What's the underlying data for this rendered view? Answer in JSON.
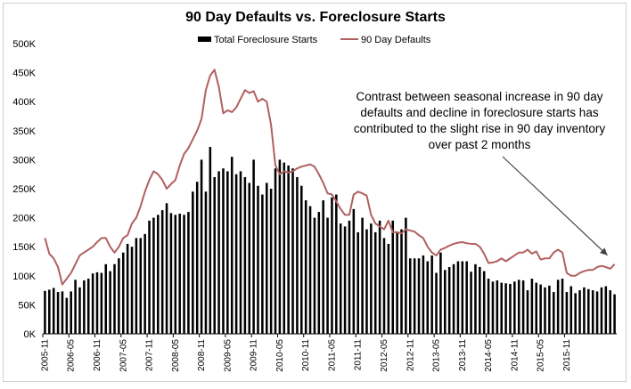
{
  "chart_data": {
    "type": "bar",
    "title": "90 Day Defaults vs. Foreclosure Starts",
    "xlabel": "",
    "ylabel": "",
    "ylim": [
      0,
      500000
    ],
    "yticks": [
      0,
      50000,
      100000,
      150000,
      200000,
      250000,
      300000,
      350000,
      400000,
      450000,
      500000
    ],
    "ytick_labels": [
      "0K",
      "50K",
      "100K",
      "150K",
      "200K",
      "250K",
      "300K",
      "350K",
      "400K",
      "450K",
      "500K"
    ],
    "x_start": "2005-11",
    "xtick_labels": [
      "2005-11",
      "2006-05",
      "2006-11",
      "2007-05",
      "2007-11",
      "2008-05",
      "2008-11",
      "2009-05",
      "2009-11",
      "2010-05",
      "2010-11",
      "2011-05",
      "2011-11",
      "2012-05",
      "2012-11",
      "2013-05",
      "2013-11",
      "2014-05",
      "2014-11",
      "2015-05",
      "2015-11"
    ],
    "grid": false,
    "legend_position": "top-center",
    "annotation": {
      "lines": [
        "Contrast between seasonal increase in 90 day",
        "defaults and decline in foreclosure starts has",
        "contributed to the slight rise in 90 day inventory",
        "over past 2 months"
      ],
      "arrow_target": "2015-11"
    },
    "series": [
      {
        "name": "Total Foreclosure Starts",
        "type": "bar",
        "color": "#000000",
        "values": [
          74000,
          76000,
          79000,
          72000,
          73000,
          62000,
          73000,
          93000,
          80000,
          92000,
          95000,
          104000,
          106000,
          105000,
          120000,
          108000,
          120000,
          130000,
          140000,
          155000,
          150000,
          165000,
          165000,
          172000,
          195000,
          200000,
          205000,
          213000,
          225000,
          208000,
          205000,
          207000,
          205000,
          210000,
          245000,
          262000,
          300000,
          245000,
          322000,
          270000,
          280000,
          285000,
          280000,
          305000,
          275000,
          280000,
          270000,
          260000,
          300000,
          255000,
          240000,
          260000,
          250000,
          285000,
          300000,
          295000,
          290000,
          285000,
          270000,
          255000,
          230000,
          220000,
          200000,
          210000,
          230000,
          200000,
          235000,
          240000,
          190000,
          185000,
          195000,
          215000,
          175000,
          200000,
          180000,
          190000,
          175000,
          195000,
          165000,
          155000,
          195000,
          175000,
          180000,
          200000,
          130000,
          130000,
          130000,
          135000,
          125000,
          135000,
          105000,
          140000,
          110000,
          115000,
          120000,
          125000,
          125000,
          125000,
          107000,
          120000,
          115000,
          108000,
          95000,
          90000,
          92000,
          88000,
          87000,
          86000,
          90000,
          93000,
          92000,
          75000,
          95000,
          88000,
          85000,
          80000,
          83000,
          72000,
          93000,
          95000,
          72000,
          82000,
          70000,
          75000,
          80000,
          77000,
          75000,
          73000,
          80000,
          82000,
          75000,
          68000
        ]
      },
      {
        "name": "90 Day Defaults",
        "type": "line",
        "color": "#b06060",
        "values": [
          165000,
          138000,
          130000,
          115000,
          85000,
          95000,
          105000,
          120000,
          135000,
          140000,
          145000,
          150000,
          158000,
          165000,
          165000,
          150000,
          140000,
          150000,
          165000,
          170000,
          190000,
          200000,
          220000,
          245000,
          265000,
          280000,
          275000,
          265000,
          250000,
          258000,
          265000,
          290000,
          310000,
          320000,
          335000,
          350000,
          370000,
          420000,
          445000,
          455000,
          425000,
          380000,
          385000,
          382000,
          390000,
          405000,
          420000,
          415000,
          418000,
          400000,
          405000,
          400000,
          360000,
          290000,
          275000,
          280000,
          278000,
          280000,
          285000,
          288000,
          290000,
          292000,
          288000,
          275000,
          260000,
          242000,
          240000,
          228000,
          215000,
          205000,
          205000,
          240000,
          245000,
          242000,
          238000,
          205000,
          190000,
          185000,
          180000,
          195000,
          175000,
          175000,
          173000,
          180000,
          178000,
          176000,
          170000,
          165000,
          150000,
          140000,
          135000,
          145000,
          148000,
          152000,
          155000,
          157000,
          158000,
          156000,
          155000,
          155000,
          150000,
          138000,
          122000,
          123000,
          125000,
          130000,
          125000,
          130000,
          135000,
          140000,
          140000,
          145000,
          138000,
          142000,
          128000,
          130000,
          130000,
          140000,
          145000,
          140000,
          105000,
          100000,
          100000,
          105000,
          108000,
          110000,
          110000,
          115000,
          117000,
          115000,
          112000,
          120000
        ]
      }
    ]
  }
}
